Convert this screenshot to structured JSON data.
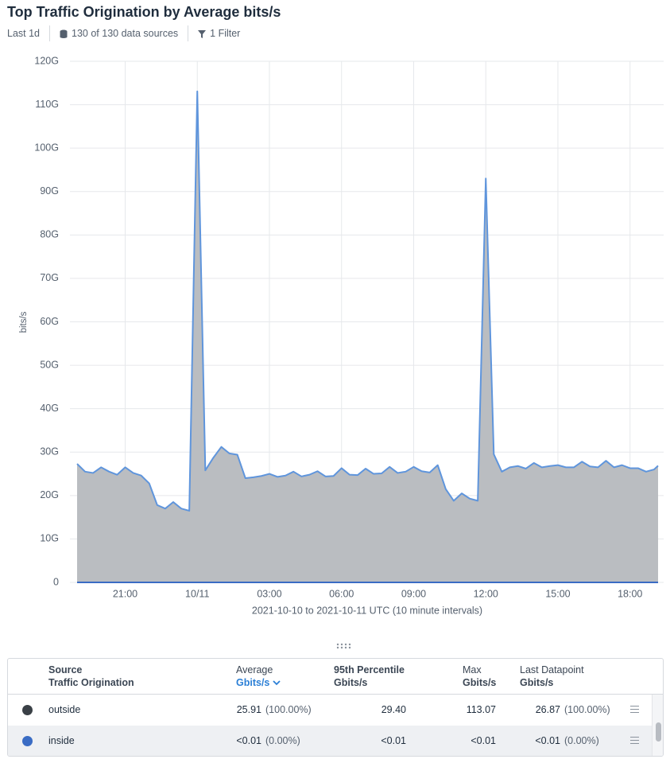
{
  "header": {
    "title": "Top Traffic Origination by Average bits/s",
    "time_range": "Last 1d",
    "data_sources": "130 of 130 data sources",
    "filter": "1 Filter"
  },
  "chart_data": {
    "type": "area",
    "ylabel": "bits/s",
    "xlabel": "2021-10-10 to 2021-10-11 UTC (10 minute intervals)",
    "x": [
      "2021-10-10T19:00",
      "2021-10-10T19:20",
      "2021-10-10T19:40",
      "2021-10-10T20:00",
      "2021-10-10T20:20",
      "2021-10-10T20:40",
      "2021-10-10T21:00",
      "2021-10-10T21:20",
      "2021-10-10T21:40",
      "2021-10-10T22:00",
      "2021-10-10T22:20",
      "2021-10-10T22:40",
      "2021-10-10T23:00",
      "2021-10-10T23:20",
      "2021-10-10T23:40",
      "2021-10-11T00:00",
      "2021-10-11T00:20",
      "2021-10-11T00:40",
      "2021-10-11T01:00",
      "2021-10-11T01:20",
      "2021-10-11T01:40",
      "2021-10-11T02:00",
      "2021-10-11T02:20",
      "2021-10-11T02:40",
      "2021-10-11T03:00",
      "2021-10-11T03:20",
      "2021-10-11T03:40",
      "2021-10-11T04:00",
      "2021-10-11T04:20",
      "2021-10-11T04:40",
      "2021-10-11T05:00",
      "2021-10-11T05:20",
      "2021-10-11T05:40",
      "2021-10-11T06:00",
      "2021-10-11T06:20",
      "2021-10-11T06:40",
      "2021-10-11T07:00",
      "2021-10-11T07:20",
      "2021-10-11T07:40",
      "2021-10-11T08:00",
      "2021-10-11T08:20",
      "2021-10-11T08:40",
      "2021-10-11T09:00",
      "2021-10-11T09:20",
      "2021-10-11T09:40",
      "2021-10-11T10:00",
      "2021-10-11T10:20",
      "2021-10-11T10:40",
      "2021-10-11T11:00",
      "2021-10-11T11:20",
      "2021-10-11T11:40",
      "2021-10-11T12:00",
      "2021-10-11T12:20",
      "2021-10-11T12:40",
      "2021-10-11T13:00",
      "2021-10-11T13:20",
      "2021-10-11T13:40",
      "2021-10-11T14:00",
      "2021-10-11T14:20",
      "2021-10-11T14:40",
      "2021-10-11T15:00",
      "2021-10-11T15:20",
      "2021-10-11T15:40",
      "2021-10-11T16:00",
      "2021-10-11T16:20",
      "2021-10-11T16:40",
      "2021-10-11T17:00",
      "2021-10-11T17:20",
      "2021-10-11T17:40",
      "2021-10-11T18:00",
      "2021-10-11T18:20",
      "2021-10-11T18:40",
      "2021-10-11T19:00",
      "2021-10-11T19:10"
    ],
    "series": [
      {
        "name": "outside",
        "color": "#3a4046",
        "area_color": "#babdc1",
        "line_color": "#5f95dc",
        "values": [
          27.3,
          25.5,
          25.2,
          26.5,
          25.5,
          24.8,
          26.5,
          25.2,
          24.6,
          22.8,
          17.8,
          17.0,
          18.5,
          17.0,
          16.5,
          113.07,
          25.8,
          28.7,
          31.2,
          29.7,
          29.4,
          24.0,
          24.2,
          24.5,
          25.0,
          24.3,
          24.6,
          25.5,
          24.4,
          24.8,
          25.6,
          24.4,
          24.5,
          26.3,
          24.8,
          24.7,
          26.2,
          25.0,
          25.1,
          26.6,
          25.2,
          25.5,
          26.6,
          25.6,
          25.3,
          27.0,
          21.5,
          18.8,
          20.5,
          19.3,
          18.8,
          93.0,
          29.5,
          25.5,
          26.5,
          26.8,
          26.2,
          27.5,
          26.5,
          26.8,
          27.0,
          26.5,
          26.5,
          27.8,
          26.7,
          26.5,
          28.0,
          26.5,
          27.0,
          26.3,
          26.3,
          25.5,
          26.0,
          26.87
        ]
      },
      {
        "name": "inside",
        "color": "#3a6cc4",
        "values": [
          0,
          0,
          0,
          0,
          0,
          0,
          0,
          0,
          0,
          0,
          0,
          0,
          0,
          0,
          0,
          0,
          0,
          0,
          0,
          0,
          0,
          0,
          0,
          0,
          0,
          0,
          0,
          0,
          0,
          0,
          0,
          0,
          0,
          0,
          0,
          0,
          0,
          0,
          0,
          0,
          0,
          0,
          0,
          0,
          0,
          0,
          0,
          0,
          0,
          0,
          0,
          0,
          0,
          0,
          0,
          0,
          0,
          0,
          0,
          0,
          0,
          0,
          0,
          0,
          0,
          0,
          0,
          0,
          0,
          0,
          0,
          0,
          0,
          0
        ]
      }
    ],
    "xlim": [
      "2021-10-10T19:00",
      "2021-10-11T19:10"
    ],
    "xticks": [
      {
        "value": "2021-10-10T21:00",
        "label": "21:00"
      },
      {
        "value": "2021-10-11T00:00",
        "label": "10/11"
      },
      {
        "value": "2021-10-11T03:00",
        "label": "03:00"
      },
      {
        "value": "2021-10-11T06:00",
        "label": "06:00"
      },
      {
        "value": "2021-10-11T09:00",
        "label": "09:00"
      },
      {
        "value": "2021-10-11T12:00",
        "label": "12:00"
      },
      {
        "value": "2021-10-11T15:00",
        "label": "15:00"
      },
      {
        "value": "2021-10-11T18:00",
        "label": "18:00"
      }
    ],
    "ylim": [
      0,
      120
    ],
    "yticks": [
      0,
      {
        "value": 10,
        "label": "10G"
      },
      {
        "value": 20,
        "label": "20G"
      },
      {
        "value": 30,
        "label": "30G"
      },
      {
        "value": 40,
        "label": "40G"
      },
      {
        "value": 50,
        "label": "50G"
      },
      {
        "value": 60,
        "label": "60G"
      },
      {
        "value": 70,
        "label": "70G"
      },
      {
        "value": 80,
        "label": "80G"
      },
      {
        "value": 90,
        "label": "90G"
      },
      {
        "value": 100,
        "label": "100G"
      },
      {
        "value": 110,
        "label": "110G"
      },
      {
        "value": 120,
        "label": "120G"
      }
    ],
    "grid": true
  },
  "table": {
    "columns": [
      {
        "label": "Source",
        "unit": "Traffic Origination"
      },
      {
        "label": "Average",
        "unit": "Gbits/s"
      },
      {
        "label": "95th Percentile",
        "unit": "Gbits/s"
      },
      {
        "label": "Max",
        "unit": "Gbits/s"
      },
      {
        "label": "Last Datapoint",
        "unit": "Gbits/s"
      }
    ],
    "rows": [
      {
        "name": "outside",
        "average": "25.91",
        "average_pct": "(100.00%)",
        "p95": "29.40",
        "max": "113.07",
        "last": "26.87",
        "last_pct": "(100.00%)"
      },
      {
        "name": "inside",
        "average": "<0.01",
        "average_pct": "(0.00%)",
        "p95": "<0.01",
        "max": "<0.01",
        "last": "<0.01",
        "last_pct": "(0.00%)"
      }
    ]
  }
}
